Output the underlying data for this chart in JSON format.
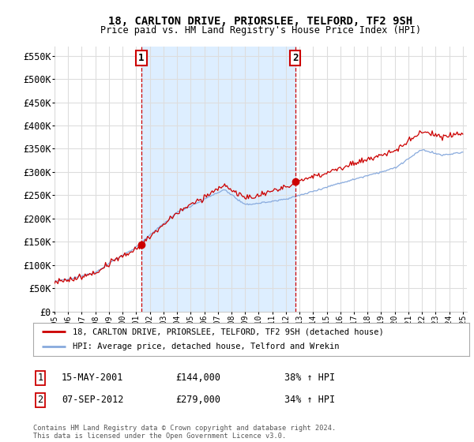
{
  "title": "18, CARLTON DRIVE, PRIORSLEE, TELFORD, TF2 9SH",
  "subtitle": "Price paid vs. HM Land Registry's House Price Index (HPI)",
  "ytick_values": [
    0,
    50000,
    100000,
    150000,
    200000,
    250000,
    300000,
    350000,
    400000,
    450000,
    500000,
    550000
  ],
  "ylim": [
    0,
    570000
  ],
  "x_start_year": 1995,
  "x_end_year": 2025,
  "background_color": "#ffffff",
  "grid_color": "#dddddd",
  "shade_color": "#ddeeff",
  "sale1_x": 2001.37,
  "sale1_price": 144000,
  "sale2_x": 2012.68,
  "sale2_price": 279000,
  "legend_house_label": "18, CARLTON DRIVE, PRIORSLEE, TELFORD, TF2 9SH (detached house)",
  "legend_hpi_label": "HPI: Average price, detached house, Telford and Wrekin",
  "house_color": "#cc0000",
  "hpi_color": "#88aadd",
  "note1_label": "1",
  "note1_date": "15-MAY-2001",
  "note1_price": "£144,000",
  "note1_hpi": "38% ↑ HPI",
  "note2_label": "2",
  "note2_date": "07-SEP-2012",
  "note2_price": "£279,000",
  "note2_hpi": "34% ↑ HPI",
  "footer": "Contains HM Land Registry data © Crown copyright and database right 2024.\nThis data is licensed under the Open Government Licence v3.0."
}
